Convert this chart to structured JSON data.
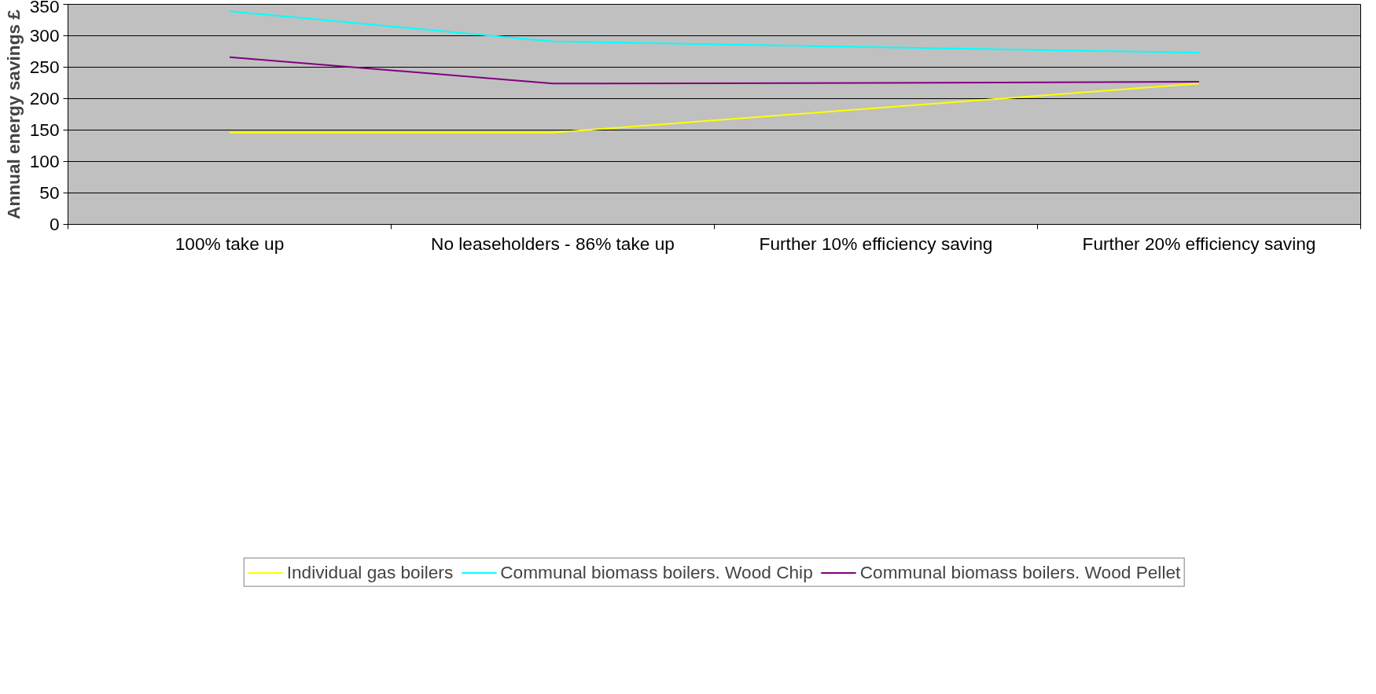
{
  "chart_data": {
    "type": "line",
    "ylabel": "Annual energy savings £",
    "categories": [
      "100% take up",
      "No leaseholders - 86% take up",
      "Further 10% efficiency saving",
      "Further 20% efficiency saving"
    ],
    "series": [
      {
        "name": "Individual gas boilers",
        "color": "#ffff00",
        "values": [
          146,
          146,
          185,
          224
        ]
      },
      {
        "name": "Communal biomass boilers. Wood Chip",
        "color": "#00ffff",
        "values": [
          339,
          291,
          282,
          273
        ]
      },
      {
        "name": "Communal biomass boilers. Wood Pellet",
        "color": "#800080",
        "values": [
          266,
          224,
          225,
          227
        ]
      }
    ],
    "ylim": [
      0,
      350
    ],
    "yticks": [
      0,
      50,
      100,
      150,
      200,
      250,
      300,
      350
    ],
    "grid": "y",
    "legend": "bottom",
    "marker": "none",
    "line_style": "solid"
  }
}
